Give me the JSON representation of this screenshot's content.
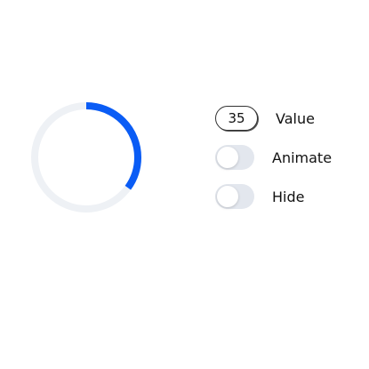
{
  "progress": {
    "value": 35,
    "max": 100,
    "track_color": "#EEF1F5",
    "fill_color": "#0A5CF5"
  },
  "controls": {
    "value": {
      "input_value": "35",
      "label": "Value"
    },
    "animate": {
      "label": "Animate",
      "checked": false,
      "track_color": "#E3E7EE"
    },
    "hide": {
      "label": "Hide",
      "checked": false,
      "track_color": "#E3E7EE"
    }
  }
}
